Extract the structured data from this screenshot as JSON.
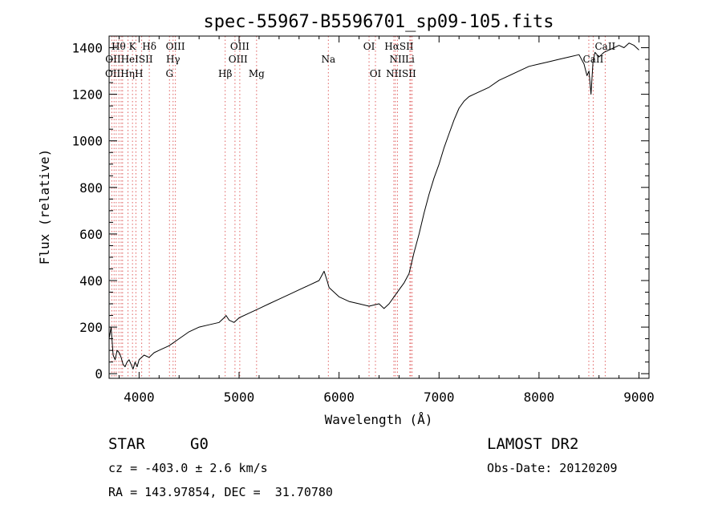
{
  "chart_data": {
    "type": "line",
    "title": "spec-55967-B5596701_sp09-105.fits",
    "xlabel": "Wavelength (Å)",
    "ylabel": "Flux (relative)",
    "xlim": [
      3700,
      9100
    ],
    "ylim": [
      -20,
      1450
    ],
    "xticks": [
      4000,
      5000,
      6000,
      7000,
      8000,
      9000
    ],
    "yticks": [
      0,
      200,
      400,
      600,
      800,
      1000,
      1200,
      1400
    ],
    "grid": false,
    "series": [
      {
        "line_color": "#000000",
        "x": [
          3700,
          3720,
          3740,
          3760,
          3780,
          3800,
          3820,
          3840,
          3860,
          3880,
          3900,
          3920,
          3940,
          3960,
          3980,
          4000,
          4050,
          4100,
          4150,
          4200,
          4300,
          4400,
          4500,
          4600,
          4700,
          4800,
          4850,
          4870,
          4900,
          4950,
          5000,
          5100,
          5200,
          5300,
          5400,
          5500,
          5600,
          5700,
          5800,
          5850,
          5880,
          5900,
          5950,
          6000,
          6100,
          6200,
          6300,
          6400,
          6450,
          6500,
          6550,
          6600,
          6650,
          6700,
          6750,
          6800,
          6850,
          6900,
          6950,
          7000,
          7050,
          7100,
          7150,
          7200,
          7250,
          7300,
          7350,
          7400,
          7450,
          7500,
          7600,
          7700,
          7800,
          7900,
          8000,
          8100,
          8200,
          8300,
          8400,
          8450,
          8480,
          8500,
          8520,
          8540,
          8560,
          8600,
          8650,
          8700,
          8750,
          8800,
          8850,
          8900,
          8950,
          9000
        ],
        "y": [
          150,
          200,
          80,
          60,
          100,
          90,
          70,
          40,
          30,
          50,
          60,
          40,
          20,
          50,
          30,
          60,
          80,
          70,
          90,
          100,
          120,
          150,
          180,
          200,
          210,
          220,
          240,
          250,
          230,
          220,
          240,
          260,
          280,
          300,
          320,
          340,
          360,
          380,
          400,
          440,
          400,
          370,
          350,
          330,
          310,
          300,
          290,
          300,
          280,
          300,
          330,
          360,
          390,
          430,
          520,
          600,
          690,
          770,
          840,
          900,
          970,
          1030,
          1090,
          1140,
          1170,
          1190,
          1200,
          1210,
          1220,
          1230,
          1260,
          1280,
          1300,
          1320,
          1330,
          1340,
          1350,
          1360,
          1370,
          1330,
          1280,
          1300,
          1200,
          1340,
          1380,
          1360,
          1380,
          1390,
          1400,
          1410,
          1400,
          1420,
          1410,
          1390
        ]
      }
    ],
    "lines": {
      "positions": [
        3727,
        3750,
        3771,
        3798,
        3820,
        3835,
        3889,
        3934,
        3968,
        4026,
        4102,
        4304,
        4340,
        4363,
        4861,
        4959,
        5007,
        5175,
        5893,
        6300,
        6364,
        6548,
        6563,
        6584,
        6717,
        6731,
        6708,
        8498,
        8542,
        8662
      ],
      "color": "#e06060",
      "labels": [
        {
          "text": "Hθ",
          "x": 3795,
          "row": 1
        },
        {
          "text": "K",
          "x": 3934,
          "row": 1
        },
        {
          "text": "Hδ",
          "x": 4102,
          "row": 1
        },
        {
          "text": "OIII",
          "x": 4363,
          "row": 1
        },
        {
          "text": "OIII",
          "x": 5007,
          "row": 1
        },
        {
          "text": "OI",
          "x": 6300,
          "row": 1
        },
        {
          "text": "HαSII",
          "x": 6600,
          "row": 1
        },
        {
          "text": "CaII",
          "x": 8662,
          "row": 1
        },
        {
          "text": "OIIHeISII",
          "x": 3900,
          "row": 2
        },
        {
          "text": "Hγ",
          "x": 4340,
          "row": 2
        },
        {
          "text": "OIII",
          "x": 4990,
          "row": 2
        },
        {
          "text": "Na",
          "x": 5893,
          "row": 2
        },
        {
          "text": "NII",
          "x": 6584,
          "row": 2
        },
        {
          "text": "Li",
          "x": 6708,
          "row": 2
        },
        {
          "text": "CaII",
          "x": 8542,
          "row": 2
        },
        {
          "text": "OIIHηH",
          "x": 3850,
          "row": 3
        },
        {
          "text": "G",
          "x": 4304,
          "row": 3
        },
        {
          "text": "Hβ",
          "x": 4861,
          "row": 3
        },
        {
          "text": "Mg",
          "x": 5175,
          "row": 3
        },
        {
          "text": "OI",
          "x": 6364,
          "row": 3
        },
        {
          "text": "NIISII",
          "x": 6620,
          "row": 3
        }
      ]
    }
  },
  "info": {
    "object_class": "STAR",
    "subclass": "G0",
    "survey": "LAMOST DR2",
    "cz": "cz = -403.0 ± 2.6 km/s",
    "obs_date": "Obs-Date: 20120209",
    "coords": "RA = 143.97854, DEC =  31.70780"
  }
}
